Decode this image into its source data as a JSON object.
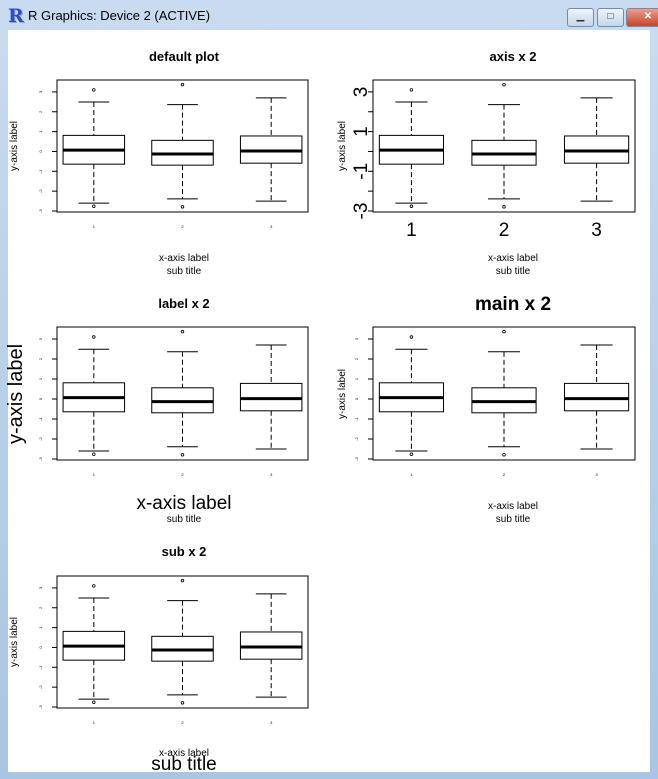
{
  "window": {
    "title": "R Graphics: Device 2 (ACTIVE)",
    "icon": "r-logo-icon",
    "minimize": "▁",
    "maximize": "□",
    "close": "✕"
  },
  "panels": [
    {
      "title": "default plot",
      "xlab": "x-axis label",
      "ylab": "y-axis label",
      "sub": "sub title"
    },
    {
      "title": "axis x 2",
      "xlab": "x-axis label",
      "ylab": "y-axis label",
      "sub": "sub title"
    },
    {
      "title": "label x 2",
      "xlab": "x-axis label",
      "ylab": "y-axis label",
      "sub": "sub title"
    },
    {
      "title": "main x 2",
      "xlab": "x-axis label",
      "ylab": "y-axis label",
      "sub": "sub title"
    },
    {
      "title": "sub x 2",
      "xlab": "x-axis label",
      "ylab": "y-axis label",
      "sub": "sub title"
    }
  ],
  "chart_data": {
    "type": "boxplot",
    "categories": [
      "1",
      "2",
      "3"
    ],
    "ylim": [
      -3.05,
      3.6
    ],
    "yticks": [
      -3,
      -2,
      -1,
      0,
      1,
      2,
      3
    ],
    "yticks_axis_x2": [
      -3,
      -1,
      1,
      3
    ],
    "groups": [
      {
        "name": "1",
        "lower": -2.6,
        "q1": -0.64,
        "median": 0.07,
        "q3": 0.81,
        "upper": 2.49,
        "outliers": [
          3.1,
          -2.76
        ]
      },
      {
        "name": "2",
        "lower": -2.39,
        "q1": -0.69,
        "median": -0.13,
        "q3": 0.56,
        "upper": 2.36,
        "outliers": [
          3.37,
          -2.79
        ]
      },
      {
        "name": "3",
        "lower": -2.5,
        "q1": -0.59,
        "median": 0.02,
        "q3": 0.78,
        "upper": 2.7,
        "outliers": []
      }
    ]
  }
}
